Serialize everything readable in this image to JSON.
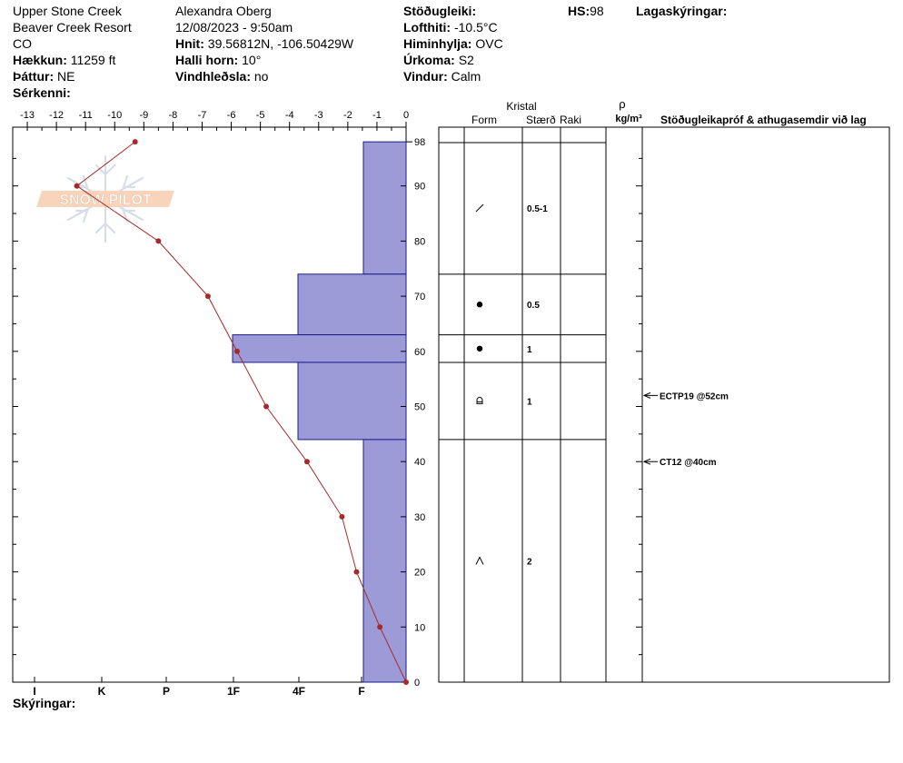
{
  "header": {
    "location": "Upper Stone Creek",
    "area": "Beaver Creek Resort",
    "state": "CO",
    "elevation_label": "Hækkun:",
    "elevation": "11259 ft",
    "aspect_label": "Þáttur:",
    "aspect": "NE",
    "features_label": "Sérkenni:",
    "observer": "Alexandra Oberg",
    "datetime": "12/08/2023 - 9:50am",
    "coords_label": "Hnit:",
    "coords": "39.56812N, -106.50429W",
    "slope_label": "Halli horn:",
    "slope": "10°",
    "wind_loading_label": "Vindhleðsla:",
    "wind_loading": "no",
    "stability_label": "Stöðugleiki:",
    "air_temp_label": "Lofthiti:",
    "air_temp": "-10.5°C",
    "sky_label": "Himinhylja:",
    "sky": "OVC",
    "precip_label": "Úrkoma:",
    "precip": "S2",
    "wind_label": "Vindur:",
    "wind": "Calm",
    "hs_label": "HS:",
    "hs": "98",
    "layer_notes_label": "Lagaskýringar:",
    "footer_label": "Skýringar:"
  },
  "watermark": {
    "text": "SNOW PILOT"
  },
  "colors": {
    "hardness_fill": "#9d9bd7",
    "hardness_stroke": "#1a1a8c",
    "temp_line": "#a52a2a"
  },
  "columns": {
    "crystal_group": "Kristal",
    "form": "Form",
    "size": "Stærð",
    "moisture": "Raki",
    "density_symbol": "ρ",
    "density_unit": "kg/m³",
    "tests": "Stöðugleikapróf & athugasemdir við lag"
  },
  "chart_data": {
    "type": "line",
    "temperature_axis": {
      "range": [
        -13.5,
        0
      ],
      "ticks": [
        -13,
        -12,
        -11,
        -10,
        -9,
        -8,
        -7,
        -6,
        -5,
        -4,
        -3,
        -2,
        -1,
        0
      ]
    },
    "height_axis": {
      "range": [
        0,
        100
      ],
      "ticks": [
        0,
        10,
        20,
        30,
        40,
        50,
        60,
        70,
        80,
        90
      ],
      "top_label": "98"
    },
    "hardness_axis": {
      "labels": [
        "I",
        "K",
        "P",
        "1F",
        "4F",
        "F"
      ]
    },
    "temperature_profile": {
      "heights": [
        98,
        90,
        80,
        70,
        60,
        50,
        40,
        30,
        20,
        10,
        0
      ],
      "temps": [
        -9.3,
        -11.3,
        -8.5,
        -6.8,
        -5.8,
        -4.8,
        -3.4,
        -2.2,
        -1.7,
        -0.9,
        0
      ]
    },
    "layers": [
      {
        "top": 98,
        "bottom": 74,
        "hardness": "F",
        "form_icon": "decomposing-icon",
        "size": "0.5-1"
      },
      {
        "top": 74,
        "bottom": 63,
        "hardness": "4F",
        "form_icon": "rounded-grains-icon",
        "size": "0.5"
      },
      {
        "top": 63,
        "bottom": 58,
        "hardness": "1F",
        "form_icon": "rounded-grains-icon",
        "size": "1"
      },
      {
        "top": 58,
        "bottom": 44,
        "hardness": "4F",
        "form_icon": "faceted-rounded-icon",
        "size": "1"
      },
      {
        "top": 44,
        "bottom": 0,
        "hardness": "F",
        "form_icon": "depth-hoar-icon",
        "size": "2"
      }
    ],
    "tests": [
      {
        "height": 52,
        "text": "ECTP19 @52cm"
      },
      {
        "height": 40,
        "text": "CT12 @40cm"
      }
    ]
  }
}
